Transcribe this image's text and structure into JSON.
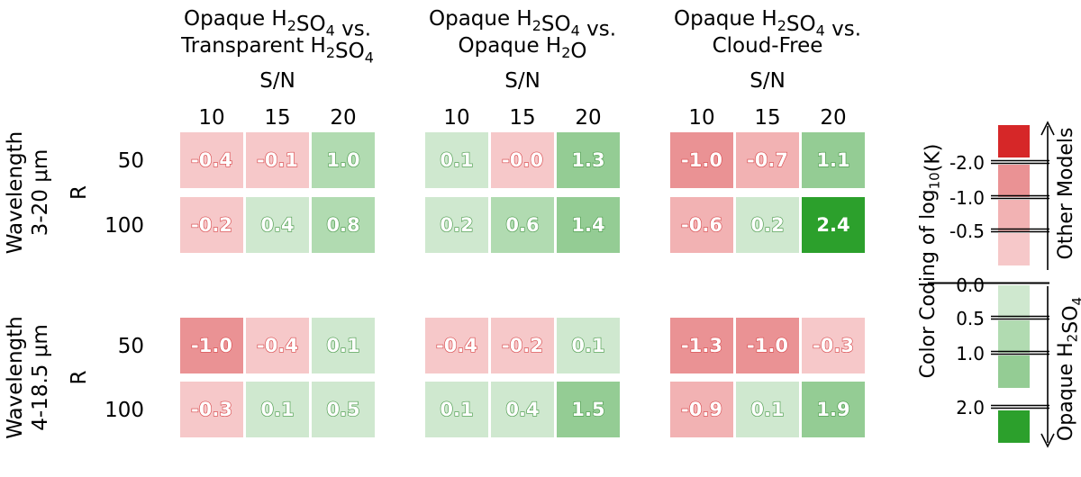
{
  "chart_data": {
    "type": "heatmap",
    "x_axis_label": "S/N",
    "x_ticks": [
      "10",
      "15",
      "20"
    ],
    "y_axis_label": "R",
    "y_ticks": [
      "50",
      "100"
    ],
    "panel_titles": [
      {
        "line1_prefix": "Opaque H",
        "line1_sub1": "2",
        "line1_mid": "SO",
        "line1_sub2": "4",
        "line1_suffix": " vs.",
        "line2_prefix": "Transparent H",
        "line2_sub1": "2",
        "line2_mid": "SO",
        "line2_sub2": "4",
        "line2_suffix": ""
      },
      {
        "line1_prefix": "Opaque H",
        "line1_sub1": "2",
        "line1_mid": "SO",
        "line1_sub2": "4",
        "line1_suffix": " vs.",
        "line2_prefix": "Opaque H",
        "line2_sub1": "2",
        "line2_mid": "O",
        "line2_sub2": "",
        "line2_suffix": ""
      },
      {
        "line1_prefix": "Opaque H",
        "line1_sub1": "2",
        "line1_mid": "SO",
        "line1_sub2": "4",
        "line1_suffix": " vs.",
        "line2_prefix": "Cloud-Free",
        "line2_sub1": "",
        "line2_mid": "",
        "line2_sub2": "",
        "line2_suffix": ""
      }
    ],
    "row_groups": [
      {
        "label_line1": "Wavelength",
        "label_line2": "3-20 μm"
      },
      {
        "label_line1": "Wavelength",
        "label_line2": "4-18.5 μm"
      }
    ],
    "values": [
      [
        [
          [
            -0.4,
            -0.1,
            1.0
          ],
          [
            -0.2,
            0.4,
            0.8
          ]
        ],
        [
          [
            0.1,
            -0.0,
            1.3
          ],
          [
            0.2,
            0.6,
            1.4
          ]
        ],
        [
          [
            -1.0,
            -0.7,
            1.1
          ],
          [
            -0.6,
            0.2,
            2.4
          ]
        ]
      ],
      [
        [
          [
            -1.0,
            -0.4,
            0.1
          ],
          [
            -0.3,
            0.1,
            0.5
          ]
        ],
        [
          [
            -0.4,
            -0.2,
            0.1
          ],
          [
            0.1,
            0.4,
            1.5
          ]
        ],
        [
          [
            -1.3,
            -1.0,
            -0.3
          ],
          [
            -0.9,
            0.1,
            1.9
          ]
        ]
      ]
    ],
    "colorbar": {
      "title": "Color Coding of log",
      "title_sub": "10",
      "title_suffix": "(K)",
      "tick_labels": [
        "-2.0",
        "-1.0",
        "-0.5",
        "0.0",
        "0.5",
        "1.0",
        "2.0"
      ],
      "bins": [
        {
          "range": "< -2.0",
          "color": "#d62728"
        },
        {
          "range": "-2.0 to -1.0",
          "color": "#ea9294"
        },
        {
          "range": "-1.0 to -0.5",
          "color": "#f2b2b3"
        },
        {
          "range": "-0.5 to 0.0",
          "color": "#f6c8c9"
        },
        {
          "range": "0.0 to 0.5",
          "color": "#cfe8cf"
        },
        {
          "range": "0.5 to 1.0",
          "color": "#b1dbb1"
        },
        {
          "range": "1.0 to 2.0",
          "color": "#94cc94"
        },
        {
          "range": "> 2.0",
          "color": "#2ca02c"
        }
      ],
      "arrow_up_label": "Other Models",
      "arrow_down_prefix": "Opaque H",
      "arrow_down_sub1": "2",
      "arrow_down_mid": "SO",
      "arrow_down_sub2": "4"
    },
    "colors": {
      "negative_text": "#ffffff",
      "positive_text": "#ffffff"
    }
  }
}
